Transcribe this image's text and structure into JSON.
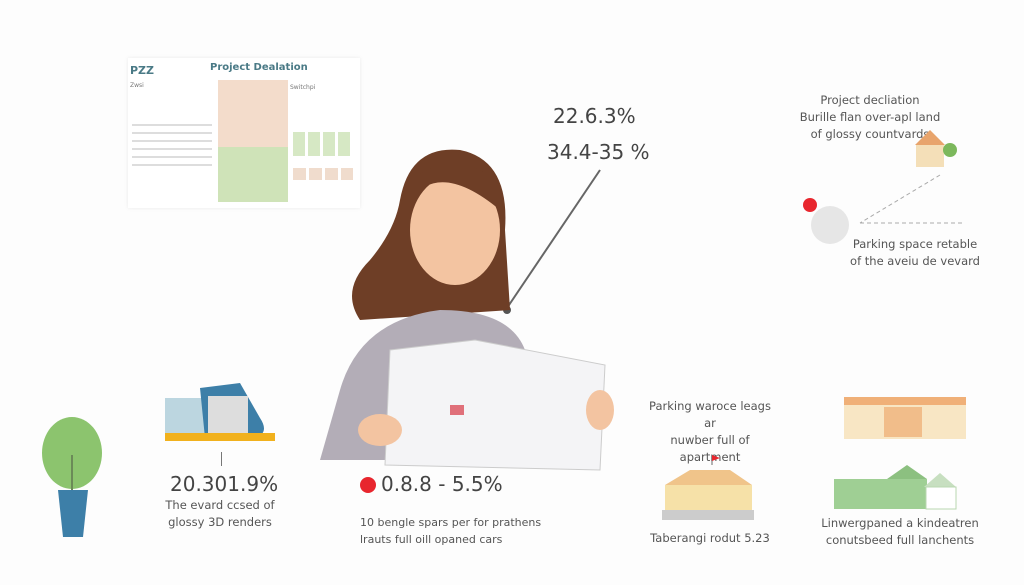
{
  "document": {
    "code": "PZZ",
    "title": "Project Dealation",
    "map_label": "Zwsi",
    "side_label": "Switchpi"
  },
  "top_stats": {
    "line1": "22.6.3%",
    "line2": "34.4-35 %"
  },
  "top_right": {
    "caption": [
      "Project decliation",
      "Burille flan over-apl land",
      "of glossy countvards"
    ]
  },
  "parking_right": {
    "caption": [
      "Parking space retable",
      "of the aveiu de vevard"
    ]
  },
  "left_stat": {
    "value": "20.301.9%",
    "caption": [
      "The evard ccsed of",
      "glossy 3D renders"
    ]
  },
  "center_stat": {
    "value": "0.8.8 - 5.5%",
    "caption": [
      "10 bengle spars per for prathens",
      "lrauts full oill opaned cars"
    ]
  },
  "parking_mid": {
    "caption": [
      "Parking waroce leags ar",
      "nuwber full of apartment"
    ]
  },
  "school": {
    "caption": "Taberangi rodut 5.23"
  },
  "kindergarten": {
    "caption": [
      "Linwergpaned a kindeatren",
      "conutsbeed full lanchents"
    ]
  },
  "colors": {
    "accent_red": "#e8262e",
    "title_teal": "#4a7a86",
    "plant_green": "#8cc46e",
    "pot_blue": "#3d7fa8"
  }
}
